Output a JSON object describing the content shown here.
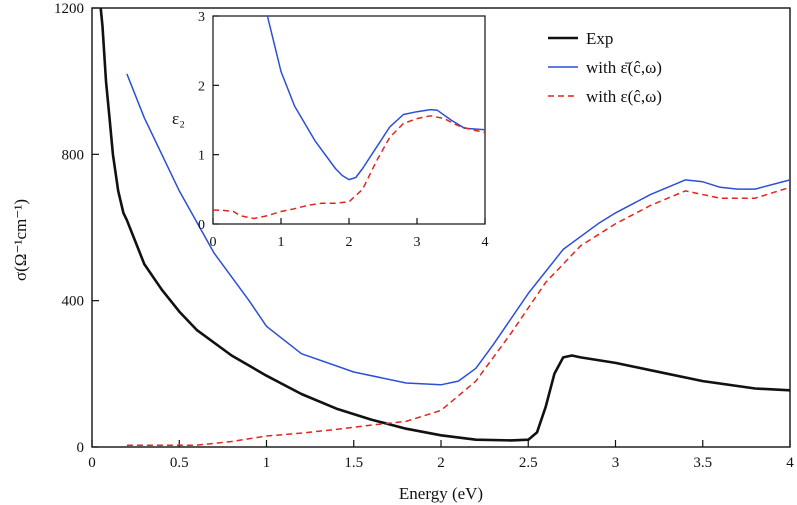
{
  "chart_data": [
    {
      "id": "main",
      "type": "line",
      "xlabel": "Energy (eV)",
      "ylabel": "σ(Ω⁻¹cm⁻¹)",
      "xlim": [
        0,
        4
      ],
      "ylim": [
        0,
        1200
      ],
      "xticks": [
        0,
        0.5,
        1,
        1.5,
        2,
        2.5,
        3,
        3.5,
        4
      ],
      "xtick_labels": [
        "0",
        "0.5",
        "1",
        "1.5",
        "2",
        "2.5",
        "3",
        "3.5",
        "4"
      ],
      "yticks": [
        0,
        400,
        800,
        1200
      ],
      "ytick_labels": [
        "0",
        "400",
        "800",
        "1200"
      ],
      "series": [
        {
          "name": "Exp",
          "color": "#111111",
          "style": "solid",
          "x": [
            0.05,
            0.06,
            0.08,
            0.1,
            0.12,
            0.15,
            0.18,
            0.2,
            0.25,
            0.3,
            0.4,
            0.5,
            0.6,
            0.8,
            1.0,
            1.2,
            1.4,
            1.6,
            1.8,
            2.0,
            2.2,
            2.4,
            2.5,
            2.55,
            2.6,
            2.65,
            2.7,
            2.75,
            2.8,
            3.0,
            3.2,
            3.5,
            3.8,
            4.0
          ],
          "y": [
            1200,
            1150,
            1000,
            900,
            800,
            700,
            640,
            620,
            560,
            500,
            430,
            370,
            320,
            250,
            195,
            145,
            105,
            75,
            50,
            32,
            20,
            18,
            20,
            40,
            110,
            200,
            245,
            250,
            245,
            230,
            210,
            180,
            160,
            155
          ]
        },
        {
          "name": "with ε̄(ĉ,ω)",
          "color": "#2b4fd8",
          "style": "solid",
          "x": [
            0.2,
            0.3,
            0.5,
            0.7,
            0.9,
            1.0,
            1.2,
            1.5,
            1.8,
            2.0,
            2.1,
            2.2,
            2.3,
            2.5,
            2.7,
            2.9,
            3.0,
            3.2,
            3.4,
            3.5,
            3.6,
            3.7,
            3.8,
            4.0
          ],
          "y": [
            1020,
            900,
            700,
            530,
            400,
            330,
            255,
            205,
            175,
            170,
            180,
            215,
            280,
            420,
            540,
            610,
            640,
            690,
            730,
            725,
            710,
            705,
            705,
            730
          ]
        },
        {
          "name": "with ε(ĉ,ω)",
          "color": "#e0261f",
          "style": "dashed",
          "x": [
            0.2,
            0.4,
            0.6,
            0.8,
            1.0,
            1.2,
            1.4,
            1.6,
            1.8,
            2.0,
            2.2,
            2.4,
            2.6,
            2.8,
            3.0,
            3.2,
            3.4,
            3.6,
            3.8,
            4.0
          ],
          "y": [
            5,
            5,
            5,
            15,
            30,
            38,
            48,
            60,
            70,
            100,
            180,
            310,
            450,
            550,
            610,
            660,
            700,
            680,
            680,
            710
          ]
        }
      ]
    },
    {
      "id": "inset",
      "type": "line",
      "ylabel": "ε₂",
      "xlim": [
        0,
        4
      ],
      "ylim": [
        0,
        3
      ],
      "xticks": [
        0,
        1,
        2,
        3,
        4
      ],
      "xtick_labels": [
        "0",
        "1",
        "2",
        "3",
        "4"
      ],
      "yticks": [
        0,
        1,
        2,
        3
      ],
      "ytick_labels": [
        "0",
        "1",
        "2",
        "3"
      ],
      "series": [
        {
          "name": "blue",
          "color": "#2b4fd8",
          "style": "solid",
          "x": [
            0.8,
            0.9,
            1.0,
            1.2,
            1.5,
            1.8,
            1.9,
            2.0,
            2.1,
            2.2,
            2.4,
            2.6,
            2.8,
            3.0,
            3.2,
            3.3,
            3.5,
            3.7,
            4.0
          ],
          "y": [
            3.0,
            2.6,
            2.2,
            1.7,
            1.2,
            0.8,
            0.7,
            0.64,
            0.67,
            0.8,
            1.1,
            1.4,
            1.58,
            1.62,
            1.65,
            1.64,
            1.5,
            1.38,
            1.36
          ]
        },
        {
          "name": "red",
          "color": "#e0261f",
          "style": "dashed",
          "x": [
            0.0,
            0.1,
            0.3,
            0.4,
            0.6,
            0.8,
            1.0,
            1.2,
            1.4,
            1.6,
            1.8,
            2.0,
            2.2,
            2.4,
            2.6,
            2.8,
            3.0,
            3.2,
            3.4,
            3.6,
            3.8,
            4.0
          ],
          "y": [
            0.2,
            0.2,
            0.18,
            0.12,
            0.08,
            0.12,
            0.18,
            0.22,
            0.27,
            0.3,
            0.3,
            0.32,
            0.5,
            0.9,
            1.25,
            1.45,
            1.52,
            1.56,
            1.52,
            1.42,
            1.36,
            1.32
          ]
        }
      ]
    }
  ],
  "legend": [
    {
      "label": "Exp",
      "color": "#111111",
      "style": "solid"
    },
    {
      "label": "with ε̄(ĉ,ω)",
      "color": "#2b4fd8",
      "style": "solid"
    },
    {
      "label": "with ε(ĉ,ω)",
      "color": "#e0261f",
      "style": "dashed"
    }
  ]
}
